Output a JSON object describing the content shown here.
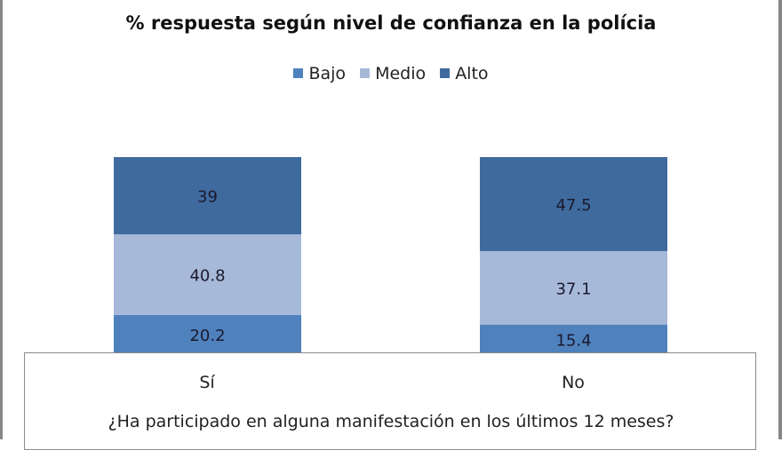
{
  "chart_data": {
    "type": "bar",
    "stacked": true,
    "title": "% respuesta según nivel de confianza en la polícia",
    "xlabel": "¿Ha participado en alguna manifestación en los últimos 12 meses?",
    "ylabel": "",
    "categories": [
      "Sí",
      "No"
    ],
    "series": [
      {
        "name": "Bajo",
        "color": "#4f81bd",
        "values": [
          20.2,
          15.4
        ]
      },
      {
        "name": "Medio",
        "color": "#a7b9d8",
        "values": [
          40.8,
          37.1
        ]
      },
      {
        "name": "Alto",
        "color": "#3f6a9e",
        "values": [
          39,
          47.5
        ]
      }
    ],
    "ylim": [
      0,
      100
    ],
    "legend": "top-center",
    "grid": false
  }
}
